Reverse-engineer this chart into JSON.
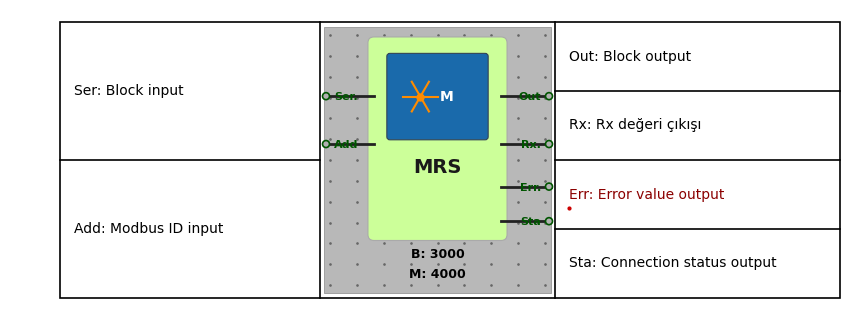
{
  "bg_color": "#ffffff",
  "border_color": "#000000",
  "left_labels": [
    {
      "text": "Ser: Block input",
      "row": 0,
      "color": "#000000"
    },
    {
      "text": "Add: Modbus ID input",
      "row": 1,
      "color": "#000000"
    }
  ],
  "right_labels": [
    {
      "text": "Out: Block output",
      "row": 0,
      "color": "#000000"
    },
    {
      "text": "Rx: Rx değeri çıkışı",
      "row": 1,
      "color": "#000000"
    },
    {
      "text": "Err: Error value output",
      "row": 2,
      "color": "#8B0000"
    },
    {
      "text": "Sta: Connection status output",
      "row": 3,
      "color": "#000000"
    }
  ],
  "block_bg": "#b8b8b8",
  "block_inner_bg": "#ccff99",
  "block_text": "MRS",
  "block_bottom1": "B: 3000",
  "block_bottom2": "M: 4000",
  "pin_color": "#005500",
  "logo_bg": "#1a6aab",
  "dot_color": "#666666",
  "err_dot_color": "#cc0000",
  "label_fontsize": 10,
  "pin_fontsize": 8
}
